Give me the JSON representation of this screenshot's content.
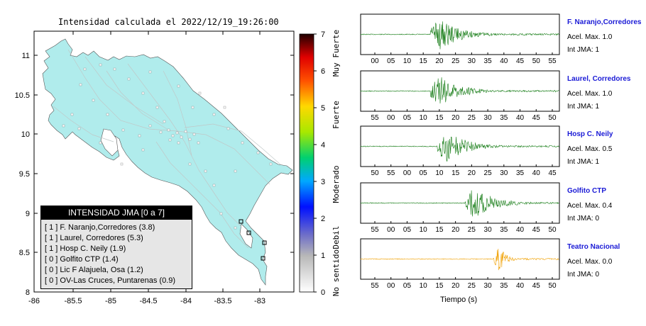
{
  "map": {
    "title": "Intensidad calculada el 2022/12/19_19:26:00",
    "x_ticks": [
      "-86",
      "-85.5",
      "-85",
      "-84.5",
      "-84",
      "-83.5",
      "-83"
    ],
    "y_ticks": [
      "11",
      "10.5",
      "10",
      "9.5",
      "9",
      "8.5",
      "8"
    ],
    "land_color": "#b0ecec"
  },
  "colorbar": {
    "ticks": [
      "7",
      "6",
      "5",
      "4",
      "3",
      "2",
      "1",
      "0"
    ],
    "labels": [
      "Muy Fuerte",
      "Fuerte",
      "Moderado",
      "Debil",
      "No sentido"
    ]
  },
  "legend": {
    "title": "INTENSIDAD JMA [0 a 7]",
    "rows": [
      "[ 1 ]  F. Naranjo,Corredores (3.8)",
      "[ 1 ]  Laurel, Corredores (5.3)",
      "[ 1 ]  Hosp C. Neily (1.9)",
      "[ 0 ]  Golfito CTP (1.4)",
      "[ 0 ]  Lic F Alajuela, Osa (1.2)",
      "[ 0 ]  OV-Las Cruces, Puntarenas (0.9)"
    ]
  },
  "seismograms": {
    "xlabel": "Tiempo (s)",
    "panels": [
      {
        "name": "F. Naranjo,Corredores",
        "acel": "Acel. Max. 1.0",
        "int": "Int JMA: 1",
        "ticks": [
          "00",
          "05",
          "10",
          "15",
          "20",
          "25",
          "30",
          "35",
          "40",
          "45",
          "50",
          "55"
        ],
        "color": "#127a12"
      },
      {
        "name": "Laurel, Corredores",
        "acel": "Acel. Max. 1.0",
        "int": "Int JMA: 1",
        "ticks": [
          "55",
          "00",
          "05",
          "10",
          "15",
          "20",
          "25",
          "30",
          "35",
          "40",
          "45",
          "50"
        ],
        "color": "#127a12"
      },
      {
        "name": "Hosp C. Neily",
        "acel": "Acel. Max. 0.5",
        "int": "Int JMA: 1",
        "ticks": [
          "50",
          "55",
          "00",
          "05",
          "10",
          "15",
          "20",
          "25",
          "30",
          "35",
          "40",
          "45"
        ],
        "color": "#127a12"
      },
      {
        "name": "Golfito CTP",
        "acel": "Acel. Max. 0.4",
        "int": "Int JMA: 0",
        "ticks": [
          "55",
          "00",
          "05",
          "10",
          "15",
          "20",
          "25",
          "30",
          "35",
          "40",
          "45",
          "50"
        ],
        "color": "#127a12"
      },
      {
        "name": "Teatro Nacional",
        "acel": "Acel. Max. 0.0",
        "int": "Int JMA: 0",
        "ticks": [
          "55",
          "00",
          "05",
          "10",
          "15",
          "20",
          "25",
          "30",
          "35",
          "40",
          "45",
          "50"
        ],
        "color": "#f0a000"
      }
    ]
  },
  "chart_data": [
    {
      "type": "scatter",
      "title": "Intensidad calculada el 2022/12/19_19:26:00",
      "xlim": [
        -86,
        -82.6
      ],
      "ylim": [
        8,
        11.3
      ],
      "legend": {
        "title": "INTENSIDAD JMA [0 a 7]",
        "stations": [
          {
            "name": "F. Naranjo,Corredores",
            "jma": 1,
            "value": 3.8
          },
          {
            "name": "Laurel, Corredores",
            "jma": 1,
            "value": 5.3
          },
          {
            "name": "Hosp C. Neily",
            "jma": 1,
            "value": 1.9
          },
          {
            "name": "Golfito CTP",
            "jma": 0,
            "value": 1.4
          },
          {
            "name": "Lic F Alajuela, Osa",
            "jma": 0,
            "value": 1.2
          },
          {
            "name": "OV-Las Cruces, Puntarenas",
            "jma": 0,
            "value": 0.9
          }
        ]
      },
      "colorbar": {
        "min": 0,
        "max": 7,
        "labels": [
          "No sentido",
          "Debil",
          "Moderado",
          "Fuerte",
          "Muy Fuerte"
        ]
      }
    },
    {
      "type": "line",
      "xlabel": "Tiempo (s)",
      "series": [
        {
          "name": "F. Naranjo,Corredores",
          "acel_max": 1.0,
          "int_jma": 1,
          "onset_s": 20
        },
        {
          "name": "Laurel, Corredores",
          "acel_max": 1.0,
          "int_jma": 1,
          "onset_s": 20
        },
        {
          "name": "Hosp C. Neily",
          "acel_max": 0.5,
          "int_jma": 1,
          "onset_s": 22
        },
        {
          "name": "Golfito CTP",
          "acel_max": 0.4,
          "int_jma": 0,
          "onset_s": 30
        },
        {
          "name": "Teatro Nacional",
          "acel_max": 0.0,
          "int_jma": 0,
          "onset_s": 38
        }
      ]
    }
  ]
}
